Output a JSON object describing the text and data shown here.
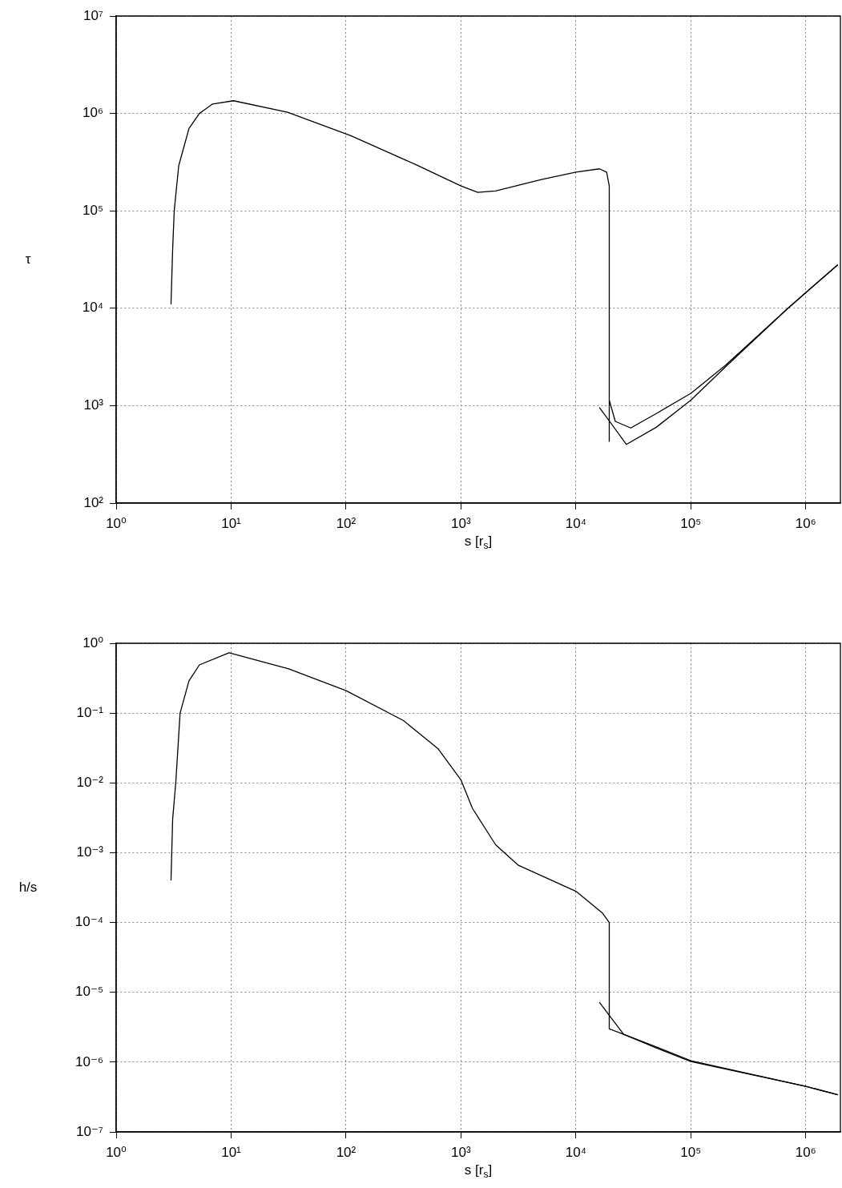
{
  "chart_data": [
    {
      "type": "line",
      "xlabel": "s [r$_{s}$]",
      "ylabel": "τ",
      "log": "xy",
      "grid": true,
      "xlim": [
        1,
        2000000
      ],
      "ylim": [
        100,
        10000000
      ],
      "xticks": [
        {
          "value": 1,
          "label": "10⁰"
        },
        {
          "value": 10,
          "label": "10¹"
        },
        {
          "value": 100,
          "label": "10²"
        },
        {
          "value": 1000,
          "label": "10³"
        },
        {
          "value": 10000,
          "label": "10⁴"
        },
        {
          "value": 100000,
          "label": "10⁵"
        },
        {
          "value": 1000000,
          "label": "10⁶"
        }
      ],
      "yticks": [
        {
          "value": 100,
          "label": "10²"
        },
        {
          "value": 1000,
          "label": "10³"
        },
        {
          "value": 10000,
          "label": "10⁴"
        },
        {
          "value": 100000,
          "label": "10⁵"
        },
        {
          "value": 1000000,
          "label": "10⁶"
        },
        {
          "value": 10000000,
          "label": "10⁷"
        }
      ],
      "series": [
        {
          "color": "#000000",
          "x": [
            3.0,
            3.1,
            3.2,
            3.5,
            4.3,
            5.3,
            6.9,
            10.5,
            31,
            110,
            400,
            1000,
            1400,
            2000,
            5000,
            10000,
            16000,
            18500,
            19500,
            19500,
            19500,
            22000,
            30000,
            50000,
            100000,
            200000,
            700000,
            1900000
          ],
          "values": [
            11000,
            40000,
            100000,
            290000,
            700000,
            1000000,
            1250000,
            1350000,
            1030000,
            590000,
            300000,
            180000,
            155000,
            160000,
            210000,
            250000,
            270000,
            250000,
            180000,
            430,
            1140,
            690,
            590,
            830,
            1340,
            2600,
            10000,
            28000
          ]
        },
        {
          "color": "#000000",
          "x": [
            16000,
            27500,
            50000,
            100000,
            200000,
            700000,
            1900000
          ],
          "values": [
            960,
            400,
            600,
            1140,
            2500,
            10000,
            28000
          ]
        }
      ]
    },
    {
      "type": "line",
      "xlabel": "s [r$_{s}$]",
      "ylabel": "h/s",
      "log": "xy",
      "grid": true,
      "xlim": [
        1,
        2000000
      ],
      "ylim": [
        1e-07,
        1
      ],
      "xticks": [
        {
          "value": 1,
          "label": "10⁰"
        },
        {
          "value": 10,
          "label": "10¹"
        },
        {
          "value": 100,
          "label": "10²"
        },
        {
          "value": 1000,
          "label": "10³"
        },
        {
          "value": 10000,
          "label": "10⁴"
        },
        {
          "value": 100000,
          "label": "10⁵"
        },
        {
          "value": 1000000,
          "label": "10⁶"
        }
      ],
      "yticks": [
        {
          "value": 1e-07,
          "label": "10⁻⁷"
        },
        {
          "value": 1e-06,
          "label": "10⁻⁶"
        },
        {
          "value": 1e-05,
          "label": "10⁻⁵"
        },
        {
          "value": 0.0001,
          "label": "10⁻⁴"
        },
        {
          "value": 0.001,
          "label": "10⁻³"
        },
        {
          "value": 0.01,
          "label": "10⁻²"
        },
        {
          "value": 0.1,
          "label": "10⁻¹"
        },
        {
          "value": 1,
          "label": "10⁰"
        }
      ],
      "series": [
        {
          "color": "#000000",
          "x": [
            3.0,
            3.1,
            3.3,
            3.6,
            4.3,
            5.3,
            9.6,
            31.6,
            100,
            316,
            630,
            1000,
            1260,
            2000,
            3160,
            10000,
            17000,
            19500,
            19500,
            26000,
            50000,
            100000,
            1000000,
            1900000
          ],
          "values": [
            0.0004,
            0.003,
            0.01,
            0.1,
            0.29,
            0.49,
            0.73,
            0.43,
            0.21,
            0.078,
            0.031,
            0.011,
            0.0043,
            0.0013,
            0.00066,
            0.00028,
            0.000137,
            0.0001,
            3e-06,
            2.5e-06,
            1.65e-06,
            1.05e-06,
            4.5e-07,
            3.4e-07
          ]
        },
        {
          "color": "#000000",
          "x": [
            16000,
            26000,
            50000,
            100000,
            1000000,
            1900000
          ],
          "values": [
            7.2e-06,
            2.5e-06,
            1.6e-06,
            1.02e-06,
            4.5e-07,
            3.4e-07
          ]
        }
      ]
    }
  ]
}
